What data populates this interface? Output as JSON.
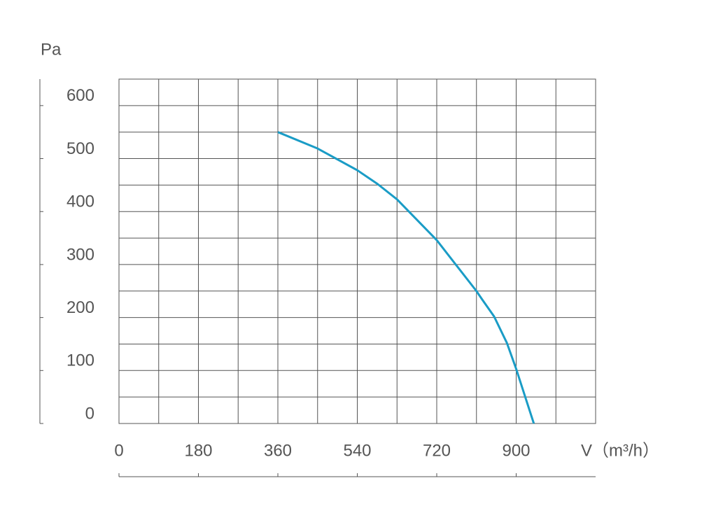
{
  "chart_data": {
    "type": "line",
    "y_label": "Pa",
    "x_label": "V（m³/h）",
    "x": [
      360,
      450,
      540,
      586,
      630,
      720,
      809,
      823,
      850,
      879,
      900,
      940
    ],
    "series": [
      {
        "name": "Pa",
        "color": "#1a9cc6",
        "values": [
          550,
          519,
          478,
          452,
          423,
          346,
          251,
          234,
          202,
          152,
          103,
          0
        ]
      }
    ],
    "xlim": [
      0,
      1080
    ],
    "ylim": [
      0,
      650
    ],
    "xticks": [
      0,
      180,
      360,
      540,
      720,
      900
    ],
    "yticks": [
      0,
      100,
      200,
      300,
      400,
      500,
      600
    ],
    "grid": true
  }
}
